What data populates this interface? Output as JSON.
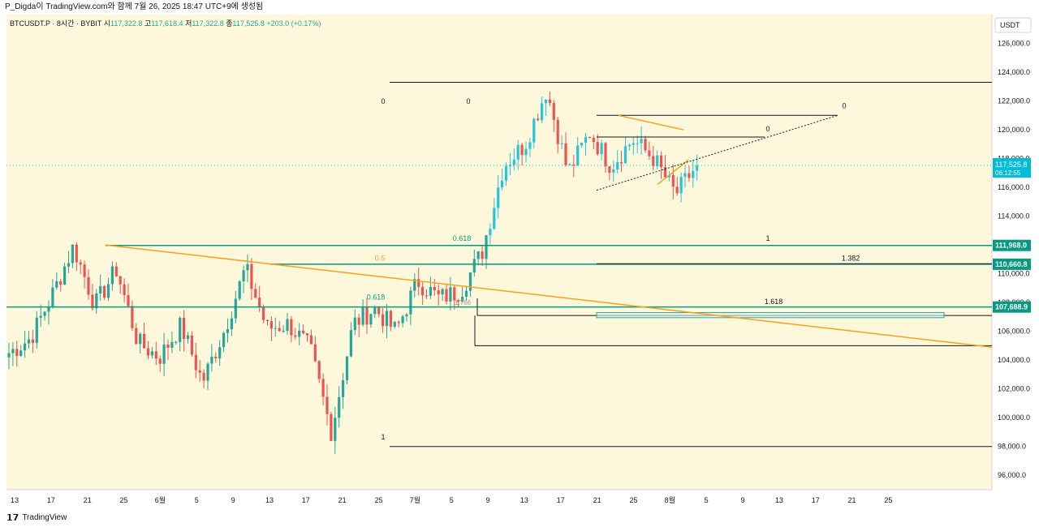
{
  "header_text": "P_Digda이 TradingView.com와 함께 7월 26, 2025 18:47 UTC+9에 생성됨",
  "footer_brand": "TradingView",
  "legend": {
    "symbol": "BTCUSDT.P · 8시간 · BYBIT",
    "o_label": "시",
    "o": "117,322.8",
    "h_label": "고",
    "h": "117,618.4",
    "l_label": "저",
    "l": "117,322.8",
    "c_label": "종",
    "c": "117,525.8",
    "change": "+203.0 (+0.17%)"
  },
  "colors": {
    "background": "#fdf8dc",
    "up": "#26a69a",
    "down": "#ef5350",
    "up_up": "#26c6da",
    "fib_green": "#089981",
    "trend_orange": "#f7a21b",
    "price_tag": "#00bcd4",
    "dark_line": "#131722",
    "gray_line": "#787b86"
  },
  "chart_data": {
    "type": "candlestick",
    "currency_label": "USDT",
    "ylim": [
      95000,
      128000
    ],
    "y_ticks": [
      96000,
      98000,
      100000,
      102000,
      104000,
      106000,
      108000,
      110000,
      112000,
      114000,
      116000,
      118000,
      120000,
      122000,
      124000,
      126000
    ],
    "y_tick_labels": [
      "96,000.0",
      "98,000.0",
      "100,000.0",
      "102,000.0",
      "104,000.0",
      "106,000.0",
      "108,000.0",
      "110,000.0",
      "112,000.0",
      "114,000.0",
      "116,000.0",
      "118,000.0",
      "120,000.0",
      "122,000.0",
      "124,000.0",
      "126,000.0"
    ],
    "x_ticks": [
      "13",
      "17",
      "21",
      "25",
      "6월",
      "5",
      "9",
      "13",
      "17",
      "21",
      "25",
      "7월",
      "5",
      "9",
      "13",
      "17",
      "21",
      "25",
      "8월",
      "5",
      "9",
      "13",
      "17",
      "21",
      "25"
    ],
    "current_price": "117,525.8",
    "countdown": "06:12:55",
    "price_tags": [
      "111,968.0",
      "110,660.8",
      "107,688.9"
    ],
    "price_tag_values": [
      111968,
      110660.8,
      107688.9
    ],
    "anchors": [
      {
        "date": "13",
        "price": 104500
      },
      {
        "date": "19",
        "price": 105500
      },
      {
        "date": "21",
        "price": 108500
      },
      {
        "date": "23",
        "price": 111900
      },
      {
        "date": "25",
        "price": 107800
      },
      {
        "date": "27",
        "price": 110300
      },
      {
        "date": "31",
        "price": 105200
      },
      {
        "date": "6월",
        "price": 104200
      },
      {
        "date": "5",
        "price": 106400
      },
      {
        "date": "7",
        "price": 102500
      },
      {
        "date": "9",
        "price": 106000
      },
      {
        "date": "10",
        "price": 110400
      },
      {
        "date": "13",
        "price": 106200
      },
      {
        "date": "17",
        "price": 106500
      },
      {
        "date": "21",
        "price": 104800
      },
      {
        "date": "23",
        "price": 99000
      },
      {
        "date": "25",
        "price": 106500
      },
      {
        "date": "29",
        "price": 107600
      },
      {
        "date": "7월",
        "price": 106000
      },
      {
        "date": "3",
        "price": 109500
      },
      {
        "date": "6",
        "price": 108300
      },
      {
        "date": "9",
        "price": 108800
      },
      {
        "date": "10",
        "price": 111500
      },
      {
        "date": "11",
        "price": 117500
      },
      {
        "date": "13",
        "price": 119000
      },
      {
        "date": "14",
        "price": 122800
      },
      {
        "date": "15",
        "price": 117000
      },
      {
        "date": "17",
        "price": 119800
      },
      {
        "date": "19",
        "price": 117500
      },
      {
        "date": "22",
        "price": 119300
      },
      {
        "date": "24",
        "price": 118000
      },
      {
        "date": "25",
        "price": 115500
      },
      {
        "date": "26",
        "price": 117525.8
      }
    ],
    "fib_labels": [
      "0",
      "0",
      "0.618",
      "0.5",
      "0.618",
      "1",
      "1.382",
      "1.618",
      "0",
      "0",
      "1"
    ],
    "overlay_labels": [
      "1.786"
    ]
  }
}
